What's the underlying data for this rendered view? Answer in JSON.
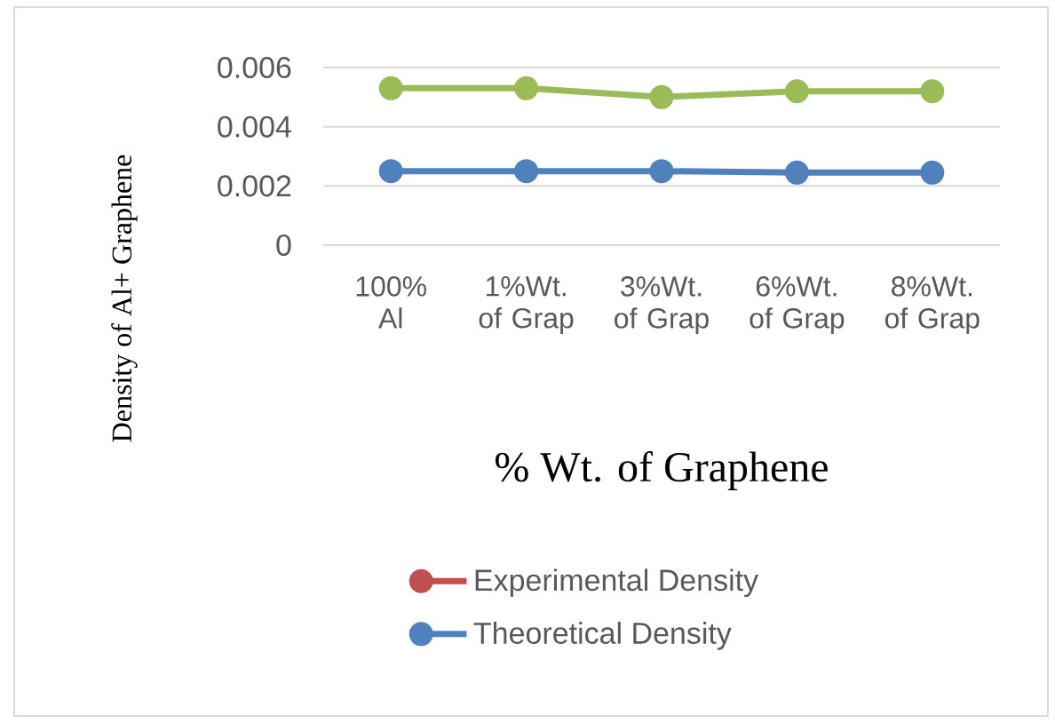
{
  "chart_data": {
    "type": "line",
    "xlabel": "% Wt. of Graphene",
    "ylabel": "Density of Al+ Graphene",
    "categories": [
      "100% Al",
      "1%Wt. of Grap",
      "3%Wt. of Grap",
      "6%Wt. of Grap",
      "8%Wt. of Grap"
    ],
    "series": [
      {
        "name": "Experimental Density",
        "color": "#c0504d",
        "values": [
          null,
          null,
          null,
          null,
          null
        ]
      },
      {
        "name": "Theoretical Density",
        "color": "#4f81bd",
        "values": [
          0.0025,
          0.0025,
          0.0025,
          0.00245,
          0.00245
        ]
      },
      {
        "color": "#9bbb59",
        "values": [
          0.0053,
          0.0053,
          0.005,
          0.0052,
          0.0052
        ]
      }
    ],
    "ylim": [
      0,
      0.006
    ],
    "yticks": [
      0,
      0.002,
      0.004,
      0.006
    ],
    "grid": "y",
    "legend": "bottom",
    "marker": "circle",
    "line_style": "solid"
  }
}
